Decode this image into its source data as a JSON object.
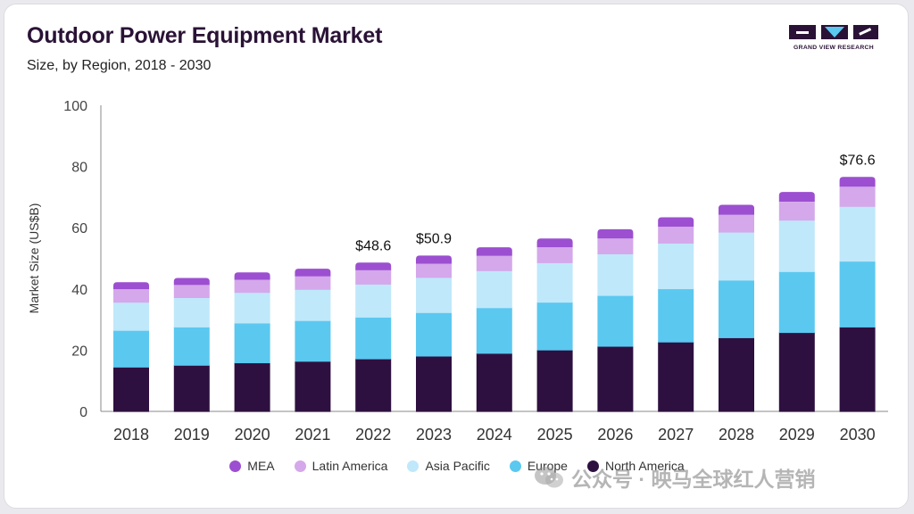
{
  "header": {
    "title": "Outdoor Power Equipment Market",
    "subtitle": "Size, by Region, 2018 - 2030"
  },
  "logo": {
    "text": "GRAND VIEW RESEARCH"
  },
  "watermark": {
    "text": "公众号 · 映马全球红人营销"
  },
  "chart_data": {
    "type": "bar",
    "stacked": true,
    "title": "Outdoor Power Equipment Market",
    "subtitle": "Size, by Region, 2018 - 2030",
    "xlabel": "",
    "ylabel": "Market Size (US$B)",
    "ylim": [
      0,
      100
    ],
    "yticks": [
      0,
      20,
      40,
      60,
      80,
      100
    ],
    "grid": false,
    "legend_position": "bottom",
    "categories": [
      "2018",
      "2019",
      "2020",
      "2021",
      "2022",
      "2023",
      "2024",
      "2025",
      "2026",
      "2027",
      "2028",
      "2029",
      "2030"
    ],
    "series": [
      {
        "name": "North America",
        "color": "#2e1040",
        "values": [
          14.5,
          15.1,
          15.9,
          16.4,
          17.2,
          18.1,
          19.0,
          20.1,
          21.3,
          22.7,
          24.1,
          25.8,
          27.6
        ]
      },
      {
        "name": "Europe",
        "color": "#5bc8f0",
        "values": [
          12.0,
          12.5,
          13.0,
          13.3,
          13.6,
          14.2,
          14.9,
          15.6,
          16.6,
          17.4,
          18.8,
          19.9,
          21.5
        ]
      },
      {
        "name": "Asia Pacific",
        "color": "#bfe8fa",
        "values": [
          9.2,
          9.6,
          10.0,
          10.2,
          10.8,
          11.5,
          12.1,
          12.9,
          13.6,
          14.9,
          15.7,
          16.8,
          17.9
        ]
      },
      {
        "name": "Latin America",
        "color": "#d4a8ea",
        "values": [
          4.2,
          4.1,
          4.1,
          4.2,
          4.5,
          4.4,
          4.8,
          5.0,
          5.0,
          5.3,
          5.6,
          6.0,
          6.4
        ]
      },
      {
        "name": "MEA",
        "color": "#9c4fd0",
        "values": [
          2.3,
          2.3,
          2.4,
          2.5,
          2.5,
          2.7,
          2.8,
          2.9,
          3.0,
          3.1,
          3.3,
          3.2,
          3.2
        ]
      }
    ],
    "legend_order": [
      "MEA",
      "Latin America",
      "Asia Pacific",
      "Europe",
      "North America"
    ],
    "annotations": [
      {
        "category": "2022",
        "label": "$48.6",
        "value": 48.6
      },
      {
        "category": "2023",
        "label": "$50.9",
        "value": 50.9
      },
      {
        "category": "2030",
        "label": "$76.6",
        "value": 76.6
      }
    ]
  }
}
